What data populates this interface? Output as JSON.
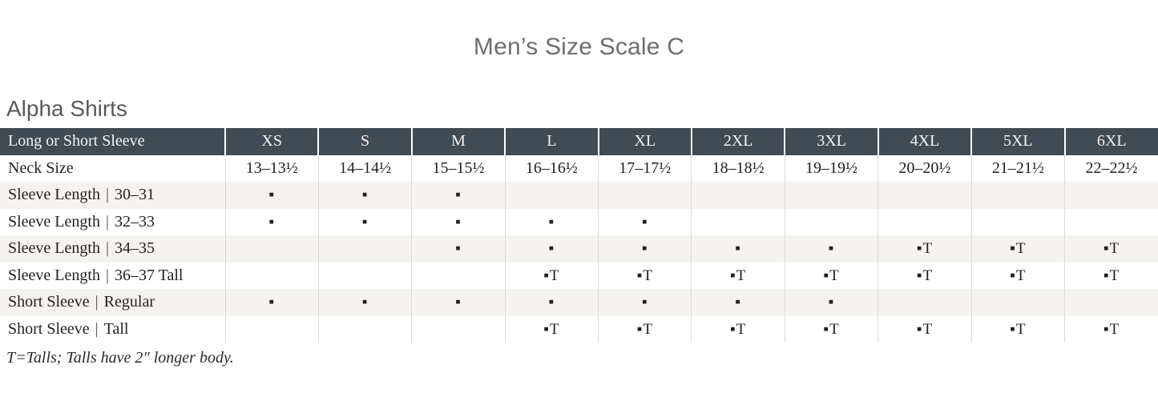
{
  "title": "Men’s Size Scale C",
  "section_heading": "Alpha Shirts",
  "footnote": "T=Talls; Talls have 2″ longer body.",
  "colors": {
    "header_bg": "#3f4c56",
    "header_text": "#f4f3f1",
    "row_stripe": "#f5f3f0",
    "grid_line": "#dcdad7",
    "body_text": "#231f20",
    "heading_text": "#58595b",
    "title_text": "#6d6e71"
  },
  "markers": {
    "available": "▪",
    "available_tall": "▪T"
  },
  "table": {
    "header": [
      "Long or Short Sleeve",
      "XS",
      "S",
      "M",
      "L",
      "XL",
      "2XL",
      "3XL",
      "4XL",
      "5XL",
      "6XL"
    ],
    "rows": [
      {
        "label": "Neck Size",
        "striped": false,
        "cells": [
          "13–13½",
          "14–14½",
          "15–15½",
          "16–16½",
          "17–17½",
          "18–18½",
          "19–19½",
          "20–20½",
          "21–21½",
          "22–22½"
        ]
      },
      {
        "label": "Sleeve Length | 30–31",
        "striped": true,
        "cells": [
          "▪",
          "▪",
          "▪",
          "",
          "",
          "",
          "",
          "",
          "",
          ""
        ]
      },
      {
        "label": "Sleeve Length | 32–33",
        "striped": false,
        "cells": [
          "▪",
          "▪",
          "▪",
          "▪",
          "▪",
          "",
          "",
          "",
          "",
          ""
        ]
      },
      {
        "label": "Sleeve Length | 34–35",
        "striped": true,
        "cells": [
          "",
          "",
          "▪",
          "▪",
          "▪",
          "▪",
          "▪",
          "▪T",
          "▪T",
          "▪T"
        ]
      },
      {
        "label": "Sleeve Length | 36–37 Tall",
        "striped": false,
        "cells": [
          "",
          "",
          "",
          "▪T",
          "▪T",
          "▪T",
          "▪T",
          "▪T",
          "▪T",
          "▪T"
        ]
      },
      {
        "label": "Short Sleeve | Regular",
        "striped": true,
        "cells": [
          "▪",
          "▪",
          "▪",
          "▪",
          "▪",
          "▪",
          "▪",
          "",
          "",
          ""
        ]
      },
      {
        "label": "Short Sleeve | Tall",
        "striped": false,
        "cells": [
          "",
          "",
          "",
          "▪T",
          "▪T",
          "▪T",
          "▪T",
          "▪T",
          "▪T",
          "▪T"
        ]
      }
    ]
  }
}
